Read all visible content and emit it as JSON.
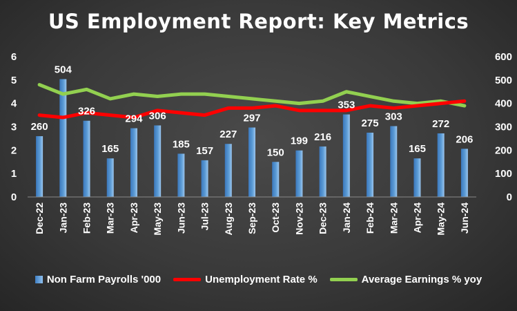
{
  "chart_data": {
    "type": "bar+line",
    "title": "US Employment Report: Key Metrics",
    "categories": [
      "Dec-22",
      "Jan-23",
      "Feb-23",
      "Mar-23",
      "Apr-23",
      "May-23",
      "Jun-23",
      "Jul-23",
      "Aug-23",
      "Sep-23",
      "Oct-23",
      "Nov-23",
      "Dec-23",
      "Jan-24",
      "Feb-24",
      "Mar-24",
      "Apr-24",
      "May-24",
      "Jun-24"
    ],
    "series": [
      {
        "name": "Non Farm Payrolls '000",
        "type": "bar",
        "axis": "right",
        "color": "#5b9bd5",
        "values": [
          260,
          504,
          326,
          165,
          294,
          306,
          185,
          157,
          227,
          297,
          150,
          199,
          216,
          353,
          275,
          303,
          165,
          272,
          206
        ],
        "data_labels": [
          "260",
          "504",
          "326",
          "165",
          "294",
          "306",
          "185",
          "157",
          "227",
          "297",
          "150",
          "199",
          "216",
          "353",
          "275",
          "303",
          "165",
          "272",
          "206"
        ]
      },
      {
        "name": "Unemployment Rate %",
        "type": "line",
        "axis": "left",
        "color": "#ff0000",
        "values": [
          3.5,
          3.4,
          3.6,
          3.5,
          3.4,
          3.7,
          3.6,
          3.5,
          3.8,
          3.8,
          3.9,
          3.7,
          3.7,
          3.7,
          3.9,
          3.8,
          3.9,
          4.0,
          4.1
        ]
      },
      {
        "name": "Average Earnings % yoy",
        "type": "line",
        "axis": "left",
        "color": "#92d050",
        "values": [
          4.8,
          4.4,
          4.6,
          4.2,
          4.4,
          4.3,
          4.4,
          4.4,
          4.3,
          4.2,
          4.1,
          4.0,
          4.1,
          4.5,
          4.3,
          4.1,
          4.0,
          4.1,
          3.9
        ]
      }
    ],
    "y_left": {
      "ticks": [
        "0",
        "1",
        "2",
        "3",
        "4",
        "5",
        "6"
      ],
      "range": [
        0,
        6
      ]
    },
    "y_right": {
      "ticks": [
        "0",
        "100",
        "200",
        "300",
        "400",
        "500",
        "600"
      ],
      "range": [
        0,
        600
      ]
    },
    "grid": false,
    "legend_position": "bottom"
  }
}
